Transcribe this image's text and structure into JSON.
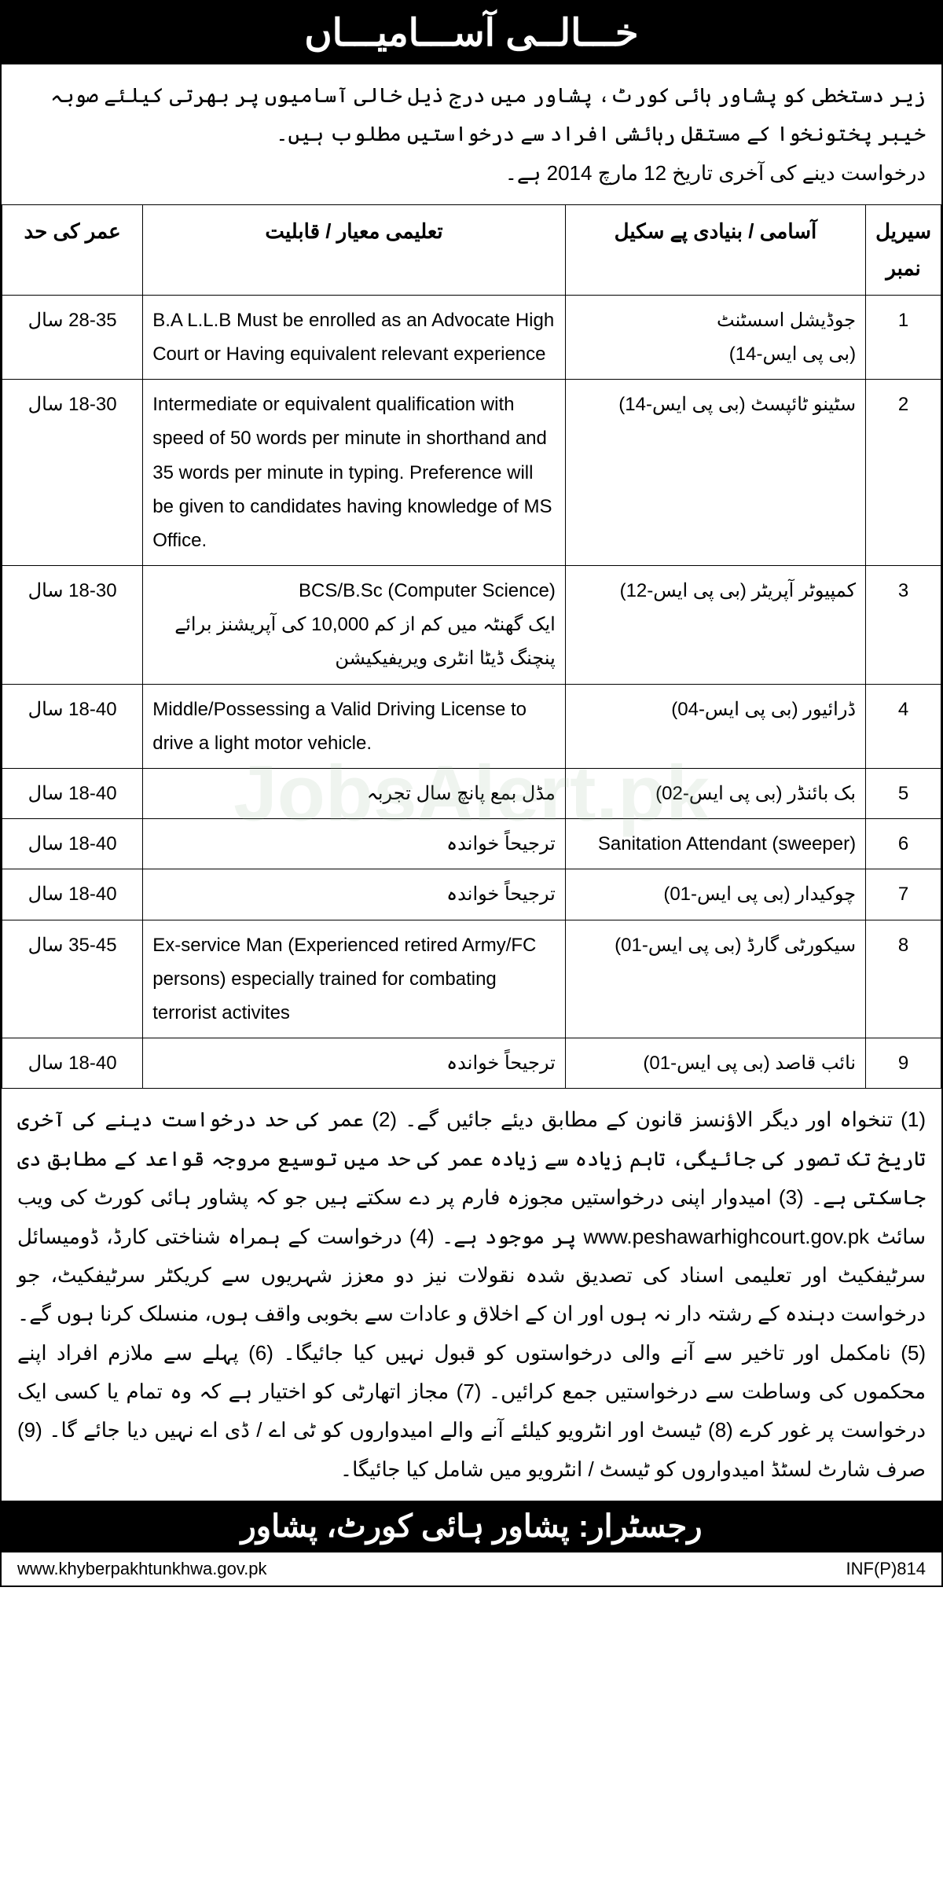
{
  "header": {
    "title": "خـــالــی آســـامیـــاں"
  },
  "intro": {
    "line1": "زیر دستخطی کو پشاور ہائی کورٹ، پشاور میں درج ذیل خالی آسامیوں پر بھرتی کیلئے صوبہ خیبر پختونخوا کے مستقل رہائشی افراد سے درخواستیں مطلوب ہیں۔",
    "line2": "درخواست دینے کی آخری تاریخ 12 مارچ 2014 ہے۔"
  },
  "table": {
    "headers": {
      "serial": "سیریل نمبر",
      "post": "آسامی / بنیادی پے سکیل",
      "qualification": "تعلیمی معیار / قابلیت",
      "age": "عمر کی حد"
    },
    "rows": [
      {
        "sn": "1",
        "post": "جوڈیشل اسسٹنٹ\n(بی پی ایس-14)",
        "qual": "B.A L.L.B Must be enrolled as an Advocate High Court or Having equivalent relevant experience",
        "qual_dir": "ltr",
        "age": "28-35 سال"
      },
      {
        "sn": "2",
        "post": "سٹینو ٹائپسٹ (بی پی ایس-14)",
        "qual": "Intermediate or equivalent qualification with speed of 50 words per minute in shorthand and 35 words per minute in typing. Preference will be given to candidates having knowledge of MS Office.",
        "qual_dir": "ltr",
        "age": "18-30 سال"
      },
      {
        "sn": "3",
        "post": "کمپیوٹر آپریٹر (بی پی ایس-12)",
        "qual": "BCS/B.Sc (Computer Science)\nایک گھنٹہ میں کم از کم 10,000 کی آپریشنز برائے پنچنگ ڈیٹا انٹری ویریفیکیشن",
        "qual_dir": "rtl",
        "age": "18-30 سال"
      },
      {
        "sn": "4",
        "post": "ڈرائیور (بی پی ایس-04)",
        "qual": "Middle/Possessing a Valid Driving License to drive a light motor vehicle.",
        "qual_dir": "ltr",
        "age": "18-40 سال"
      },
      {
        "sn": "5",
        "post": "بک بائنڈر (بی پی ایس-02)",
        "qual": "مڈل بمع پانچ سال تجربہ",
        "qual_dir": "rtl",
        "age": "18-40 سال"
      },
      {
        "sn": "6",
        "post": "Sanitation Attendant (sweeper)",
        "qual": "ترجیحاً خواندہ",
        "qual_dir": "rtl",
        "age": "18-40 سال"
      },
      {
        "sn": "7",
        "post": "چوکیدار (بی پی ایس-01)",
        "qual": "ترجیحاً خواندہ",
        "qual_dir": "rtl",
        "age": "18-40 سال"
      },
      {
        "sn": "8",
        "post": "سیکورٹی گارڈ (بی پی ایس-01)",
        "qual": "Ex-service Man (Experienced retired Army/FC persons) especially trained for combating terrorist activites",
        "qual_dir": "ltr",
        "age": "35-45 سال"
      },
      {
        "sn": "9",
        "post": "نائب قاصد (بی پی ایس-01)",
        "qual": "ترجیحاً خواندہ",
        "qual_dir": "rtl",
        "age": "18-40 سال"
      }
    ]
  },
  "notes": {
    "text": "(1) تنخواہ اور دیگر الاؤنسز قانون کے مطابق دیئے جائیں گے۔ (2) عمر کی حد درخواست دینے کی آخری تاریخ تک تصور کی جائیگی، تاہم زیادہ سے زیادہ عمر کی حد میں توسیع مروجہ قواعد کے مطابق دی جاسکتی ہے۔ (3) امیدوار اپنی درخواستیں مجوزہ فارم پر دے سکتے ہیں جو کہ پشاور ہائی کورٹ کی ویب سائٹ www.peshawarhighcourt.gov.pk پر موجود ہے۔ (4) درخواست کے ہمراہ شناختی کارڈ، ڈومیسائل سرٹیفکیٹ اور تعلیمی اسناد کی تصدیق شدہ نقولات نیز دو معزز شہریوں سے کریکٹر سرٹیفکیٹ، جو درخواست دہندہ کے رشتہ دار نہ ہوں اور ان کے اخلاق و عادات سے بخوبی واقف ہوں، منسلک کرنا ہوں گے۔ (5) نامکمل اور تاخیر سے آنے والی درخواستوں کو قبول نہیں کیا جائیگا۔ (6) پہلے سے ملازم افراد اپنے محکموں کی وساطت سے درخواستیں جمع کرائیں۔ (7) مجاز اتھارٹی کو اختیار ہے کہ وہ تمام یا کسی ایک درخواست پر غور کرے (8) ٹیسٹ اور انٹرویو کیلئے آنے والے امیدواروں کو ٹی اے / ڈی اے نہیں دیا جائے گا۔ (9) صرف شارٹ لسٹڈ امیدواروں کو ٹیسٹ / انٹرویو میں شامل کیا جائیگا۔"
  },
  "footer": {
    "title": "رجسٹرار: پشاور ہائی کورٹ، پشاور"
  },
  "bottom": {
    "ref": "INF(P)814",
    "url": "www.khyberpakhtunkhwa.gov.pk"
  },
  "watermark": "JobsAlert.pk",
  "colors": {
    "black": "#000000",
    "white": "#ffffff",
    "watermark": "rgba(150,180,150,0.15)"
  }
}
